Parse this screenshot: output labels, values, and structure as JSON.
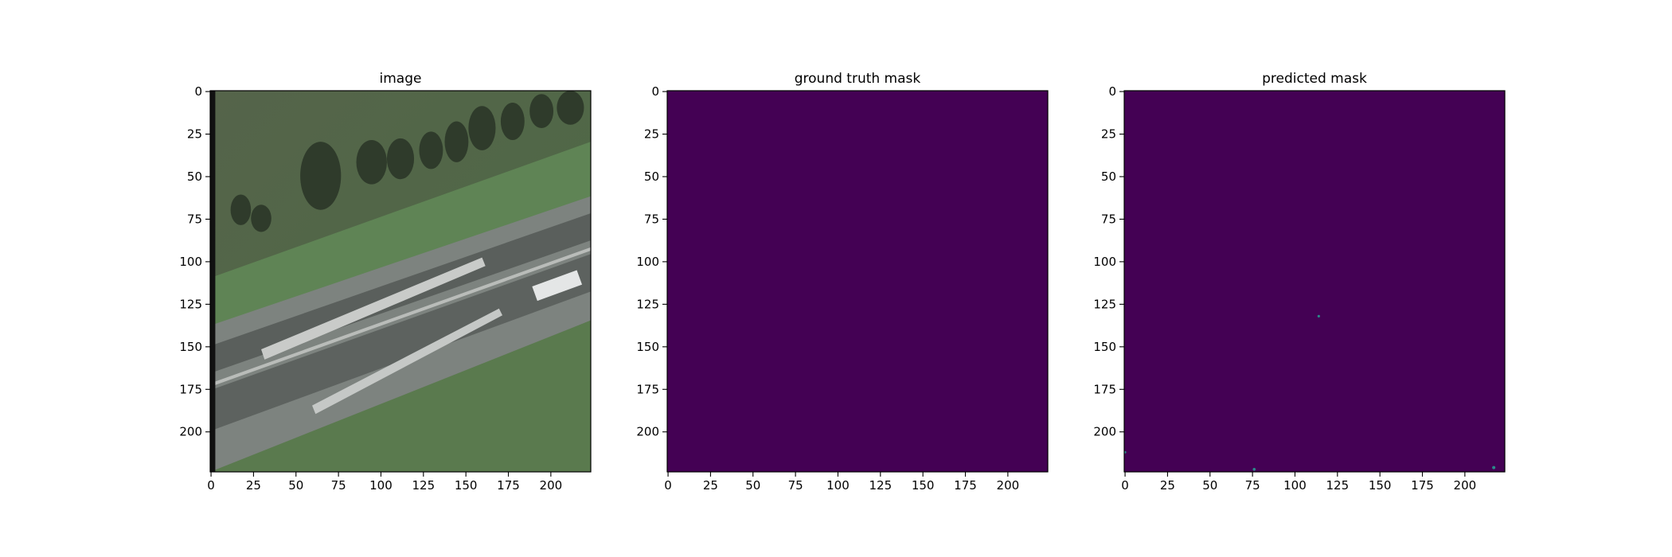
{
  "chart_data": [
    {
      "type": "photo",
      "title": "image",
      "xlim": [
        -0.5,
        223.5
      ],
      "ylim": [
        223.5,
        -0.5
      ],
      "xticks": [
        0,
        25,
        50,
        75,
        100,
        125,
        150,
        175,
        200
      ],
      "yticks": [
        0,
        25,
        50,
        75,
        100,
        125,
        150,
        175,
        200
      ]
    },
    {
      "type": "mask",
      "title": "ground truth mask",
      "color": "#440154",
      "xlim": [
        -0.5,
        223.5
      ],
      "ylim": [
        223.5,
        -0.5
      ],
      "xticks": [
        0,
        25,
        50,
        75,
        100,
        125,
        150,
        175,
        200
      ],
      "yticks": [
        0,
        25,
        50,
        75,
        100,
        125,
        150,
        175,
        200
      ]
    },
    {
      "type": "mask",
      "title": "predicted mask",
      "color": "#440154",
      "xlim": [
        -0.5,
        223.5
      ],
      "ylim": [
        223.5,
        -0.5
      ],
      "xticks": [
        0,
        25,
        50,
        75,
        100,
        125,
        150,
        175,
        200
      ],
      "yticks": [
        0,
        25,
        50,
        75,
        100,
        125,
        150,
        175,
        200
      ]
    }
  ]
}
